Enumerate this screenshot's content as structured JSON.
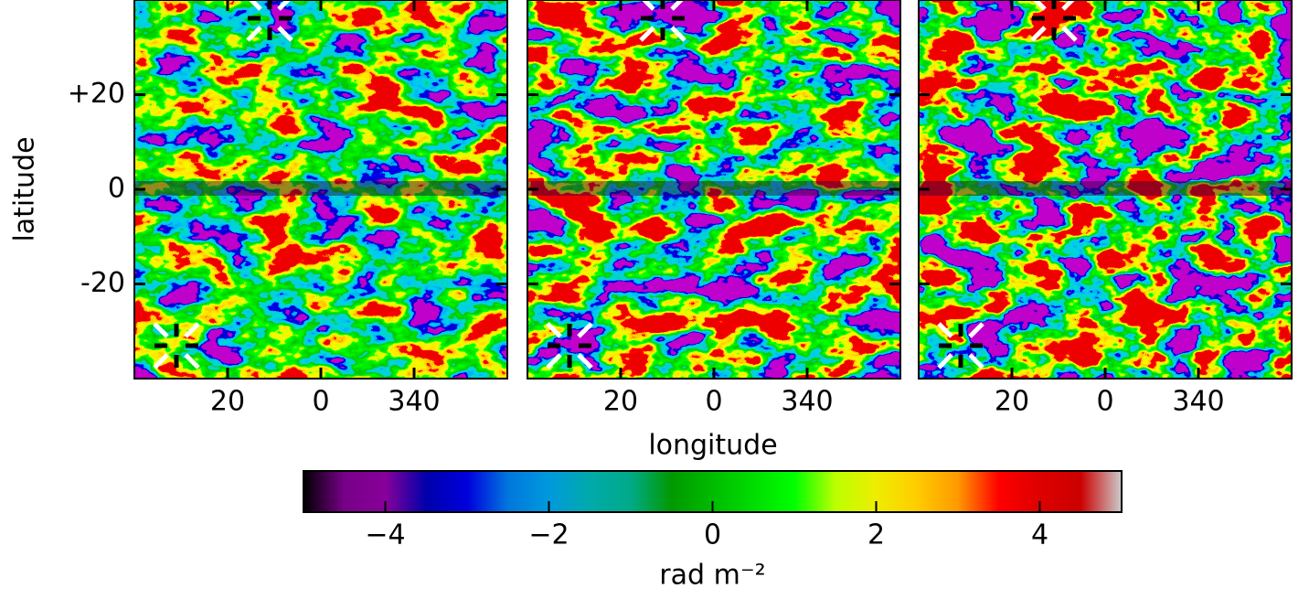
{
  "chart_data": [
    {
      "type": "image",
      "ylabel": "latitude",
      "xlim": [
        40,
        -40
      ],
      "ylim": [
        -40,
        40
      ],
      "xticks": [
        20,
        0,
        {
          "value": -20,
          "label": "340"
        }
      ],
      "yticks": [
        {
          "value": 20,
          "label": "+20"
        },
        0,
        -20
      ]
    },
    {
      "type": "image",
      "xlabel": "longitude",
      "xlim": [
        40,
        -40
      ],
      "ylim": [
        -40,
        40
      ],
      "xticks": [
        20,
        0,
        {
          "value": -20,
          "label": "340"
        }
      ]
    },
    {
      "type": "image",
      "xlim": [
        40,
        -40
      ],
      "ylim": [
        -40,
        40
      ],
      "xticks": [
        20,
        0,
        {
          "value": -20,
          "label": "340"
        }
      ]
    },
    {
      "type": "colorbar",
      "label": "rad m⁻²",
      "xlim": [
        -5,
        5
      ],
      "xticks": [
        {
          "value": -4,
          "label": "−4"
        },
        {
          "value": -2,
          "label": "−2"
        },
        0,
        2,
        4
      ]
    }
  ]
}
